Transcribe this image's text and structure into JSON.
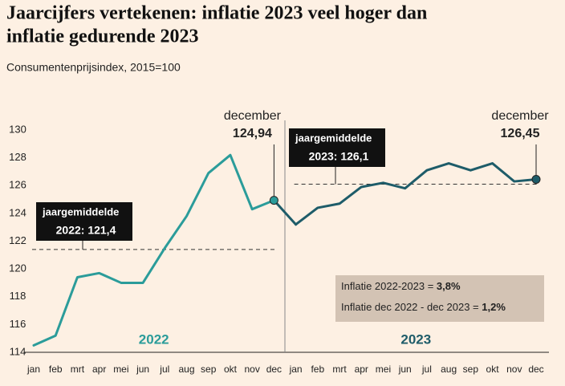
{
  "chart_data": {
    "type": "line",
    "title": [
      "Jaarcijfers vertekenen: inflatie 2023 veel hoger dan",
      "inflatie gedurende 2023"
    ],
    "subtitle": "Consumentenprijsindex, 2015=100",
    "categories": [
      "jan",
      "feb",
      "mrt",
      "apr",
      "mei",
      "jun",
      "jul",
      "aug",
      "sep",
      "okt",
      "nov",
      "dec",
      "jan",
      "feb",
      "mrt",
      "apr",
      "mei",
      "jun",
      "jul",
      "aug",
      "sep",
      "okt",
      "nov",
      "dec"
    ],
    "series": [
      {
        "name": "2022",
        "color": "#2b9c9a",
        "values": [
          114.5,
          115.2,
          119.4,
          119.7,
          119.0,
          119.0,
          121.5,
          123.8,
          126.9,
          128.2,
          124.3,
          124.94,
          null,
          null,
          null,
          null,
          null,
          null,
          null,
          null,
          null,
          null,
          null,
          null
        ]
      },
      {
        "name": "2023",
        "color": "#1e5c69",
        "values": [
          null,
          null,
          null,
          null,
          null,
          null,
          null,
          null,
          null,
          null,
          null,
          null,
          123.2,
          124.4,
          124.7,
          125.9,
          126.2,
          125.8,
          127.1,
          127.6,
          127.1,
          127.6,
          126.3,
          126.45
        ]
      }
    ],
    "ylim": [
      114,
      130
    ],
    "yticks": [
      114,
      116,
      118,
      120,
      122,
      124,
      126,
      128,
      130
    ],
    "point_annotations": [
      {
        "label": "december",
        "value_label": "124,94",
        "series": 0,
        "index": 11
      },
      {
        "label": "december",
        "value_label": "126,45",
        "series": 1,
        "index": 23
      }
    ],
    "averages": [
      {
        "label": "jaargemiddelde",
        "text": "2022: 121,4",
        "value": 121.4,
        "from": 0,
        "to": 11
      },
      {
        "label": "jaargemiddelde",
        "text": "2023: 126,1",
        "value": 126.1,
        "from": 12,
        "to": 23
      }
    ],
    "info": [
      {
        "text": "Inflatie 2022-2023 = ",
        "bold": "3,8%"
      },
      {
        "text": "Inflatie dec 2022 - dec 2023 = ",
        "bold": "1,2%"
      }
    ]
  }
}
